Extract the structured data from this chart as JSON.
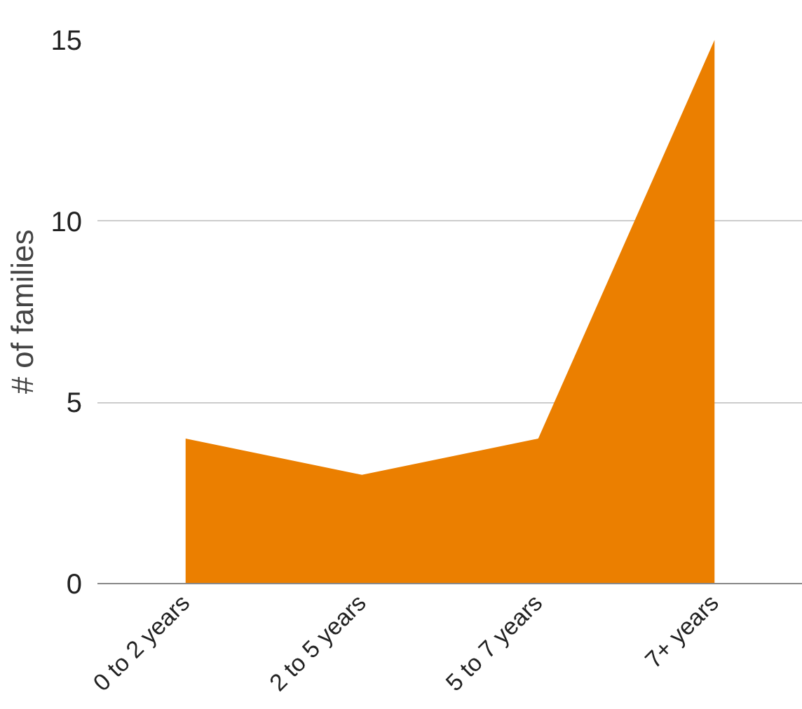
{
  "chart_data": {
    "type": "area",
    "ylabel": "# of families",
    "categories": [
      "0 to 2 years",
      "2 to 5 years",
      "5 to 7 years",
      "7+ years"
    ],
    "series": [
      {
        "color": "#eb7f00",
        "values": [
          4,
          3,
          4,
          15
        ]
      }
    ],
    "ylim": [
      0,
      15
    ],
    "yticks": [
      0,
      5,
      10,
      15
    ],
    "grid": "y"
  }
}
